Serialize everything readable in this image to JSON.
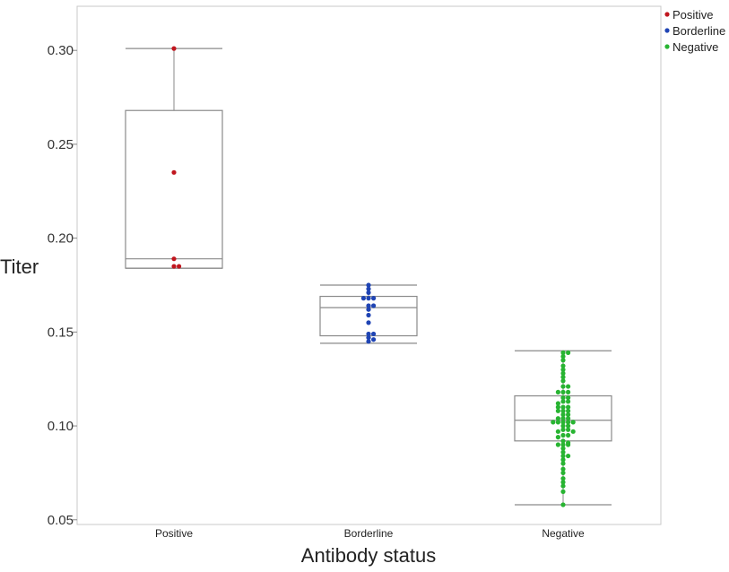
{
  "chart_data": {
    "type": "box-swarm",
    "xlabel": "Antibody status",
    "ylabel": "Titer",
    "ylim": [
      0.0475,
      0.3235
    ],
    "yticks": [
      "0.05",
      "0.10",
      "0.15",
      "0.20",
      "0.25",
      "0.30"
    ],
    "ytick_values": [
      0.05,
      0.1,
      0.15,
      0.2,
      0.25,
      0.3
    ],
    "categories": [
      "Positive",
      "Borderline",
      "Negative"
    ],
    "legend": {
      "position": "top-right",
      "entries": [
        {
          "label": "Positive",
          "color": "#c0161e"
        },
        {
          "label": "Borderline",
          "color": "#1f44b4"
        },
        {
          "label": "Negative",
          "color": "#28b432"
        }
      ]
    },
    "series": [
      {
        "category": "Positive",
        "color": "#c0161e",
        "box": {
          "whisker_low": 0.184,
          "q1": 0.184,
          "median": 0.189,
          "q3": 0.268,
          "whisker_high": 0.301
        },
        "points": [
          0.301,
          0.235,
          0.189,
          0.185,
          0.185
        ]
      },
      {
        "category": "Borderline",
        "color": "#1f44b4",
        "box": {
          "whisker_low": 0.144,
          "q1": 0.148,
          "median": 0.163,
          "q3": 0.169,
          "whisker_high": 0.175
        },
        "points": [
          0.175,
          0.173,
          0.171,
          0.168,
          0.168,
          0.168,
          0.164,
          0.164,
          0.162,
          0.159,
          0.155,
          0.149,
          0.149,
          0.147,
          0.146,
          0.145
        ]
      },
      {
        "category": "Negative",
        "color": "#28b432",
        "box": {
          "whisker_low": 0.058,
          "q1": 0.092,
          "median": 0.103,
          "q3": 0.116,
          "whisker_high": 0.14
        },
        "points": [
          0.139,
          0.139,
          0.137,
          0.135,
          0.132,
          0.13,
          0.128,
          0.126,
          0.124,
          0.121,
          0.121,
          0.118,
          0.118,
          0.118,
          0.115,
          0.115,
          0.113,
          0.113,
          0.112,
          0.11,
          0.11,
          0.11,
          0.108,
          0.108,
          0.108,
          0.106,
          0.106,
          0.104,
          0.104,
          0.104,
          0.102,
          0.102,
          0.102,
          0.102,
          0.102,
          0.1,
          0.1,
          0.098,
          0.098,
          0.097,
          0.097,
          0.095,
          0.095,
          0.094,
          0.092,
          0.091,
          0.09,
          0.09,
          0.09,
          0.088,
          0.086,
          0.084,
          0.084,
          0.082,
          0.08,
          0.077,
          0.075,
          0.072,
          0.07,
          0.068,
          0.065,
          0.058
        ]
      }
    ]
  }
}
